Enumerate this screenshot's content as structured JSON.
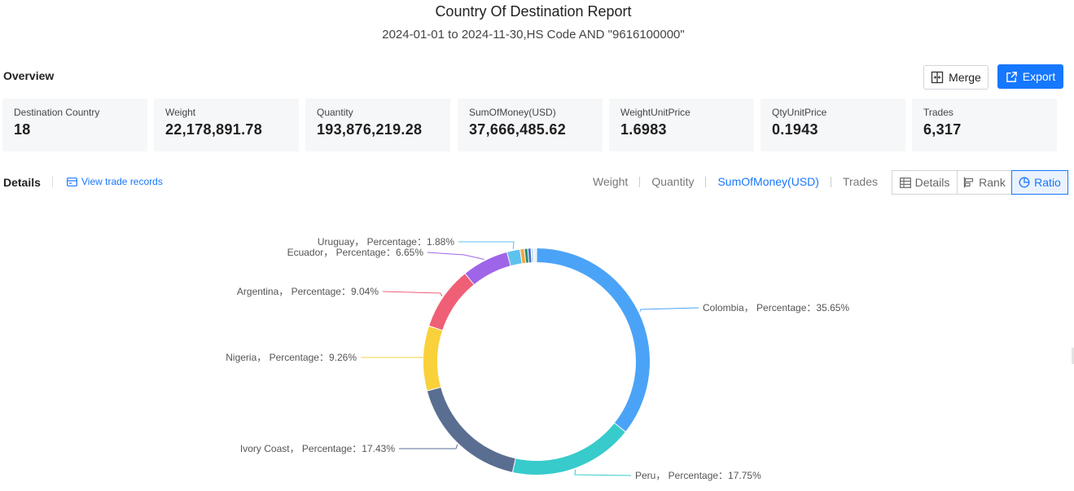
{
  "header": {
    "title": "Country Of Destination Report",
    "subtitle": "2024-01-01 to 2024-11-30,HS Code AND \"9616100000\""
  },
  "overview": {
    "label": "Overview",
    "merge_label": "Merge",
    "export_label": "Export",
    "stats": [
      {
        "label": "Destination Country",
        "value": "18"
      },
      {
        "label": "Weight",
        "value": "22,178,891.78"
      },
      {
        "label": "Quantity",
        "value": "193,876,219.28"
      },
      {
        "label": "SumOfMoney(USD)",
        "value": "37,666,485.62"
      },
      {
        "label": "WeightUnitPrice",
        "value": "1.6983"
      },
      {
        "label": "QtyUnitPrice",
        "value": "0.1943"
      },
      {
        "label": "Trades",
        "value": "6,317"
      }
    ]
  },
  "details": {
    "label": "Details",
    "view_records": "View trade records",
    "metric_tabs": [
      "Weight",
      "Quantity",
      "SumOfMoney(USD)",
      "Trades"
    ],
    "active_metric": "SumOfMoney(USD)",
    "view_buttons": [
      "Details",
      "Rank",
      "Ratio"
    ],
    "active_view": "Ratio"
  },
  "chart_data": {
    "type": "pie",
    "donut": true,
    "label_template": "{name}， Percentage：{pct}%",
    "slices": [
      {
        "name": "Colombia",
        "value": 35.65,
        "color": "#4ba3f7",
        "labeled": true
      },
      {
        "name": "Peru",
        "value": 17.75,
        "color": "#37cbcb",
        "labeled": true
      },
      {
        "name": "Ivory Coast",
        "value": 17.43,
        "color": "#5a6e91",
        "labeled": true
      },
      {
        "name": "Nigeria",
        "value": 9.26,
        "color": "#f9d13b",
        "labeled": true
      },
      {
        "name": "Argentina",
        "value": 9.04,
        "color": "#ef5f75",
        "labeled": true
      },
      {
        "name": "Ecuador",
        "value": 6.65,
        "color": "#9f65e9",
        "labeled": true
      },
      {
        "name": "Uruguay",
        "value": 1.88,
        "color": "#5ec2ee",
        "labeled": true
      },
      {
        "value": 0.6,
        "color": "#f6a443",
        "labeled": false
      },
      {
        "value": 0.5,
        "color": "#2f8f6f",
        "labeled": false
      },
      {
        "value": 0.45,
        "color": "#3b6fd1",
        "labeled": false
      },
      {
        "value": 0.35,
        "color": "#bfe3f4",
        "labeled": false
      },
      {
        "value": 0.44,
        "color": "#eeeeee",
        "labeled": false
      }
    ]
  }
}
